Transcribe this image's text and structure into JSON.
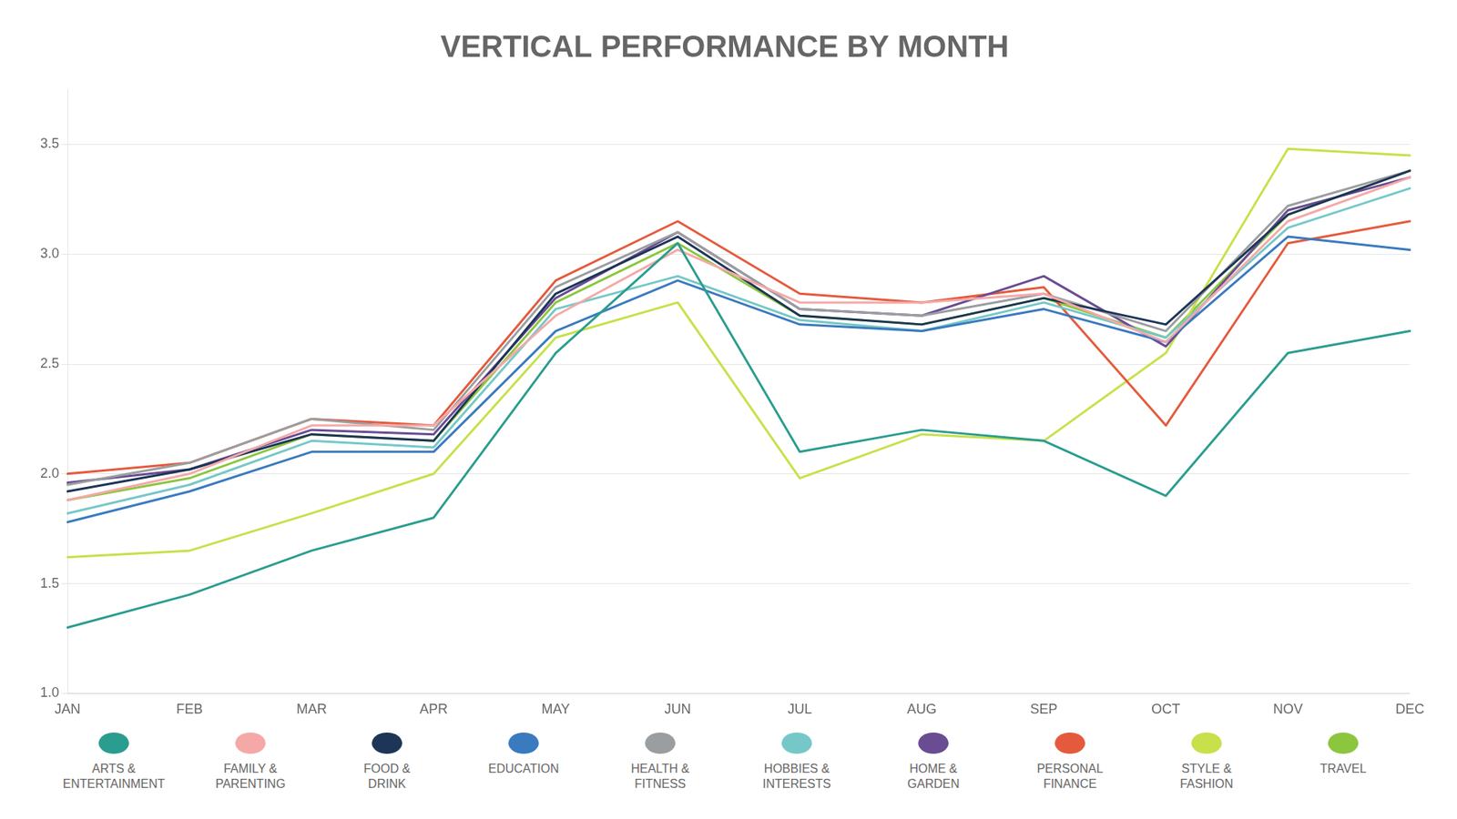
{
  "chart_data": {
    "type": "line",
    "title": "VERTICAL PERFORMANCE BY MONTH",
    "categories": [
      "JAN",
      "FEB",
      "MAR",
      "APR",
      "MAY",
      "JUN",
      "JUL",
      "AUG",
      "SEP",
      "OCT",
      "NOV",
      "DEC"
    ],
    "series": [
      {
        "name": "ARTS &\nENTERTAINMENT",
        "color": "#2a9d8f",
        "values": [
          1.3,
          1.45,
          1.65,
          1.8,
          2.55,
          3.05,
          2.1,
          2.2,
          2.15,
          1.9,
          2.55,
          2.65
        ]
      },
      {
        "name": "FAMILY &\nPARENTING",
        "color": "#f4a9a8",
        "values": [
          1.88,
          2.0,
          2.22,
          2.22,
          2.72,
          3.02,
          2.78,
          2.78,
          2.82,
          2.6,
          3.15,
          3.35
        ]
      },
      {
        "name": "FOOD &\nDRINK",
        "color": "#1d3557",
        "values": [
          1.92,
          2.02,
          2.18,
          2.15,
          2.82,
          3.08,
          2.72,
          2.68,
          2.8,
          2.68,
          3.18,
          3.38
        ]
      },
      {
        "name": "EDUCATION",
        "color": "#3a7abf",
        "values": [
          1.78,
          1.92,
          2.1,
          2.1,
          2.65,
          2.88,
          2.68,
          2.65,
          2.75,
          2.6,
          3.08,
          3.02
        ]
      },
      {
        "name": "HEALTH &\nFITNESS",
        "color": "#9b9ea0",
        "values": [
          1.95,
          2.05,
          2.25,
          2.2,
          2.85,
          3.1,
          2.75,
          2.72,
          2.82,
          2.65,
          3.22,
          3.38
        ]
      },
      {
        "name": "HOBBIES &\nINTERESTS",
        "color": "#76c8c8",
        "values": [
          1.82,
          1.95,
          2.15,
          2.12,
          2.75,
          2.9,
          2.7,
          2.65,
          2.78,
          2.62,
          3.12,
          3.3
        ]
      },
      {
        "name": "HOME &\nGARDEN",
        "color": "#6a4c93",
        "values": [
          1.96,
          2.02,
          2.2,
          2.18,
          2.8,
          3.1,
          2.75,
          2.72,
          2.9,
          2.58,
          3.2,
          3.35
        ]
      },
      {
        "name": "PERSONAL\nFINANCE",
        "color": "#e55a3c",
        "values": [
          2.0,
          2.05,
          2.25,
          2.22,
          2.88,
          3.15,
          2.82,
          2.78,
          2.85,
          2.22,
          3.05,
          3.15
        ]
      },
      {
        "name": "STYLE &\nFASHION",
        "color": "#c8e04a",
        "values": [
          1.62,
          1.65,
          1.82,
          2.0,
          2.62,
          2.78,
          1.98,
          2.18,
          2.15,
          2.55,
          3.48,
          3.45
        ]
      },
      {
        "name": "TRAVEL",
        "color": "#8cc63f",
        "values": [
          1.88,
          1.98,
          2.18,
          2.15,
          2.78,
          3.05,
          2.72,
          2.68,
          2.8,
          2.62,
          3.18,
          3.38
        ]
      }
    ],
    "ylim": [
      1.0,
      3.75
    ],
    "yticks": [
      {
        "value": 1.0,
        "label": "1.0"
      },
      1.5,
      {
        "value": 2.0,
        "label": "2.0"
      },
      2.5,
      {
        "value": 3.0,
        "label": "3.0"
      },
      3.5
    ],
    "grid": true,
    "legend": "bottom"
  }
}
